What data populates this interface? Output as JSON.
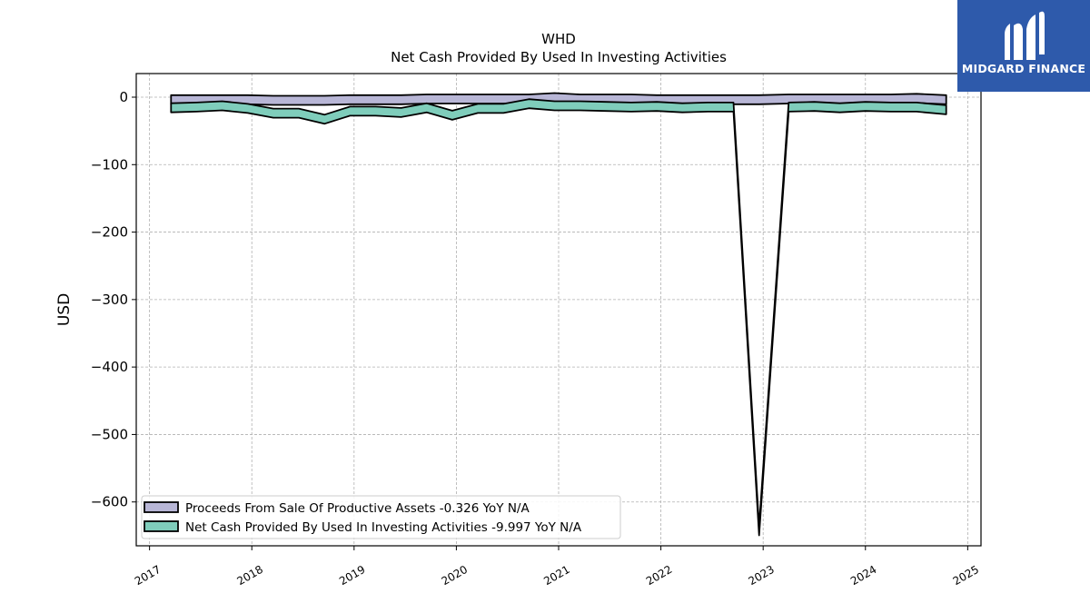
{
  "chart_data": {
    "type": "area",
    "title": "WHD",
    "subtitle": "Net Cash Provided By Used In Investing Activities",
    "ylabel": "USD",
    "xlabel": "",
    "ylim": [
      -665,
      35
    ],
    "xlim": [
      2016.87,
      2025.13
    ],
    "yticks": [
      0,
      -100,
      -200,
      -300,
      -400,
      -500,
      -600
    ],
    "ytick_labels": [
      "0",
      "−100",
      "−200",
      "−300",
      "−400",
      "−500",
      "−600"
    ],
    "xticks": [
      2017,
      2018,
      2019,
      2020,
      2021,
      2022,
      2023,
      2024,
      2025
    ],
    "xtick_labels": [
      "2017",
      "2018",
      "2019",
      "2020",
      "2021",
      "2022",
      "2023",
      "2024",
      "2025"
    ],
    "grid": true,
    "legend_position": "lower-left",
    "x": [
      2017.21,
      2017.46,
      2017.71,
      2017.96,
      2018.21,
      2018.46,
      2018.71,
      2018.96,
      2019.21,
      2019.46,
      2019.71,
      2019.96,
      2020.21,
      2020.46,
      2020.71,
      2020.96,
      2021.21,
      2021.46,
      2021.71,
      2021.96,
      2022.21,
      2022.46,
      2022.71,
      2022.96,
      2023.25,
      2023.5,
      2023.75,
      2024.0,
      2024.25,
      2024.5,
      2024.79
    ],
    "series": [
      {
        "name": "Proceeds From Sale Of Productive Assets",
        "legend_label": "Proceeds From Sale Of Productive Assets  -0.326 YoY N/A",
        "color": "#b8b6d6",
        "values": [
          3,
          3,
          3,
          3,
          2,
          2,
          2,
          3,
          3,
          3,
          4,
          4,
          4,
          4,
          4,
          6,
          4,
          4,
          4,
          3,
          3,
          3,
          3,
          3,
          4,
          4,
          4,
          4,
          4,
          5,
          3
        ]
      },
      {
        "name": "Net Cash Provided By Used In Investing Activities",
        "legend_label": "Net Cash Provided By Used In Investing Activities  -9.997 YoY N/A",
        "color": "#7fcdbb",
        "values": [
          -9,
          -8,
          -6,
          -10,
          -17,
          -17,
          -26,
          -14,
          -14,
          -16,
          -9,
          -20,
          -10,
          -10,
          -3,
          -6,
          -6,
          -7,
          -8,
          -7,
          -9,
          -8,
          -8,
          -636,
          -8,
          -7,
          -9,
          -7,
          -8,
          -8,
          -12
        ]
      }
    ]
  },
  "branding": {
    "name": "MIDGARD FINANCE",
    "color": "#2e5aab"
  }
}
